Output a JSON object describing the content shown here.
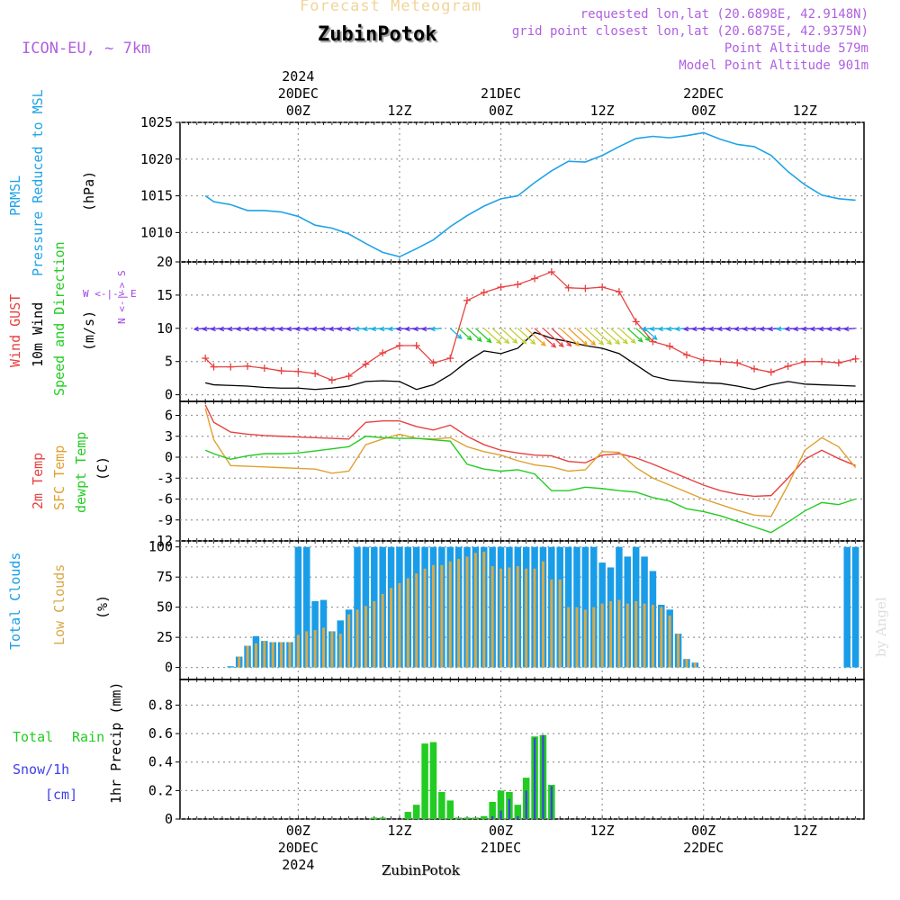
{
  "header": {
    "title": "Forecast Meteogram",
    "location": "ZubinPotok",
    "model": "ICON-EU, ~ 7km",
    "requested": "requested lon,lat (20.6898E, 42.9148N)",
    "closest": "grid point closest lon,lat (20.6875E, 42.9375N)",
    "point_alt": "Point Altitude 579m",
    "model_alt": "Model Point Altitude 901m",
    "footer_location": "ZubinPotok",
    "credit": "by Angel"
  },
  "colors": {
    "pressure": "#1fa3e8",
    "gust": "#e84040",
    "wind": "#000000",
    "temp": "#e84040",
    "sfc": "#e0a030",
    "dewpt": "#22cc22",
    "total_clouds": "#1a9de8",
    "low_clouds": "#d9a847",
    "rain": "#22cc22",
    "snow": "#4040e8",
    "dir_label": "#a040e0"
  },
  "time_axis": {
    "top_labels": [
      {
        "line1": "2024",
        "line2": "20DEC",
        "line3": "00Z",
        "hour": 24
      },
      {
        "line1": "",
        "line2": "",
        "line3": "12Z",
        "hour": 36
      },
      {
        "line1": "",
        "line2": "21DEC",
        "line3": "00Z",
        "hour": 48
      },
      {
        "line1": "",
        "line2": "",
        "line3": "12Z",
        "hour": 60
      },
      {
        "line1": "",
        "line2": "22DEC",
        "line3": "00Z",
        "hour": 72
      },
      {
        "line1": "",
        "line2": "",
        "line3": "12Z",
        "hour": 84
      }
    ],
    "bottom_labels": [
      {
        "line1": "00Z",
        "line2": "20DEC",
        "line3": "2024",
        "hour": 24
      },
      {
        "line1": "12Z",
        "line2": "",
        "line3": "",
        "hour": 36
      },
      {
        "line1": "00Z",
        "line2": "21DEC",
        "line3": "",
        "hour": 48
      },
      {
        "line1": "12Z",
        "line2": "",
        "line3": "",
        "hour": 60
      },
      {
        "line1": "00Z",
        "line2": "22DEC",
        "line3": "",
        "hour": 72
      },
      {
        "line1": "12Z",
        "line2": "",
        "line3": "",
        "hour": 84
      }
    ]
  },
  "panels": {
    "pressure": {
      "label1": "PRMSL",
      "label2": "Pressure Reduced to MSL",
      "unit": "(hPa)"
    },
    "wind": {
      "label_gust": "Wind GUST",
      "label_wind": "10m Wind",
      "label_dir": "Speed and Direction",
      "unit": "(m/s)",
      "compass_ns": "N <-|-> S",
      "compass_we": "W <-|-> E"
    },
    "temp": {
      "label_t2m": "2m Temp",
      "label_sfc": "SFC Temp",
      "label_dew": "dewpt Temp",
      "unit": "(C)"
    },
    "clouds": {
      "label_total": "Total Clouds",
      "label_low": "Low Clouds",
      "unit": "(%)"
    },
    "precip": {
      "label_total": "Total",
      "label_rain": "Rain",
      "label_snow": "Snow/1h",
      "label_cm": "[cm]",
      "unit": "1hr Precip (mm)"
    }
  },
  "chart_data": [
    {
      "type": "line",
      "title": "PRMSL Pressure Reduced to MSL",
      "ylabel": "(hPa)",
      "ylim": [
        1006,
        1025
      ],
      "yticks": [
        1010,
        1015,
        1020,
        1025
      ],
      "x": [
        13,
        14,
        16,
        18,
        20,
        22,
        24,
        26,
        28,
        30,
        32,
        34,
        36,
        38,
        40,
        42,
        44,
        46,
        48,
        50,
        52,
        54,
        56,
        58,
        60,
        62,
        64,
        66,
        68,
        70,
        72,
        74,
        76,
        78,
        80,
        82,
        84,
        86,
        88,
        90
      ],
      "series": [
        {
          "name": "PRMSL",
          "values": [
            1015,
            1014.2,
            1013.8,
            1013.0,
            1013.0,
            1012.8,
            1012.2,
            1011.0,
            1010.6,
            1009.8,
            1008.5,
            1007.3,
            1006.7,
            1007.8,
            1009.0,
            1010.8,
            1012.3,
            1013.6,
            1014.6,
            1015.0,
            1016.8,
            1018.4,
            1019.7,
            1019.6,
            1020.5,
            1021.7,
            1022.8,
            1023.1,
            1022.9,
            1023.2,
            1023.6,
            1022.7,
            1022.0,
            1021.7,
            1020.5,
            1018.3,
            1016.5,
            1015.1,
            1014.6,
            1014.4
          ]
        }
      ]
    },
    {
      "type": "line",
      "title": "Wind GUST / 10m Wind",
      "ylabel": "(m/s)",
      "ylim": [
        -1,
        20
      ],
      "yticks": [
        0,
        5,
        10,
        15,
        20
      ],
      "x": [
        13,
        14,
        16,
        18,
        20,
        22,
        24,
        26,
        28,
        30,
        32,
        34,
        36,
        38,
        40,
        42,
        44,
        46,
        48,
        50,
        52,
        54,
        56,
        58,
        60,
        62,
        64,
        66,
        68,
        70,
        72,
        74,
        76,
        78,
        80,
        82,
        84,
        86,
        88,
        90
      ],
      "series": [
        {
          "name": "Wind GUST",
          "values": [
            5.5,
            4.2,
            4.2,
            4.3,
            4.0,
            3.6,
            3.5,
            3.2,
            2.2,
            2.8,
            4.6,
            6.3,
            7.4,
            7.4,
            4.8,
            5.5,
            14.2,
            15.4,
            16.2,
            16.6,
            17.5,
            18.5,
            16.1,
            16.0,
            16.2,
            15.5,
            11.0,
            8.0,
            7.3,
            6.0,
            5.2,
            5.0,
            4.8,
            3.9,
            3.4,
            4.3,
            5.0,
            5.0,
            4.8,
            5.4
          ]
        },
        {
          "name": "10m Wind",
          "values": [
            1.8,
            1.5,
            1.4,
            1.3,
            1.1,
            1.0,
            1.0,
            0.8,
            1.0,
            1.3,
            2.0,
            2.1,
            2.0,
            0.8,
            1.5,
            3.0,
            5.0,
            6.6,
            6.2,
            7.0,
            9.4,
            8.5,
            8.0,
            7.4,
            7.0,
            6.2,
            4.5,
            2.8,
            2.2,
            2.0,
            1.8,
            1.7,
            1.3,
            0.8,
            1.5,
            2.0,
            1.6,
            1.5,
            1.4,
            1.3
          ]
        }
      ]
    },
    {
      "type": "line",
      "title": "2m / SFC / dewpt Temp",
      "ylabel": "(C)",
      "ylim": [
        -12,
        8
      ],
      "yticks": [
        -12,
        -9,
        -6,
        -3,
        0,
        3,
        6
      ],
      "x": [
        13,
        14,
        16,
        18,
        20,
        22,
        24,
        26,
        28,
        30,
        32,
        34,
        36,
        38,
        40,
        42,
        44,
        46,
        48,
        50,
        52,
        54,
        56,
        58,
        60,
        62,
        64,
        66,
        68,
        70,
        72,
        74,
        76,
        78,
        80,
        82,
        84,
        86,
        88,
        90
      ],
      "series": [
        {
          "name": "2m Temp",
          "values": [
            7.5,
            5.0,
            3.6,
            3.3,
            3.1,
            3.0,
            2.9,
            2.8,
            2.7,
            2.6,
            5.0,
            5.2,
            5.2,
            4.4,
            3.9,
            4.6,
            3.0,
            1.8,
            1.0,
            0.6,
            0.3,
            0.2,
            -0.6,
            -0.8,
            0.3,
            0.5,
            -0.1,
            -1.0,
            -2.0,
            -3.0,
            -4.0,
            -4.8,
            -5.3,
            -5.6,
            -5.5,
            -3.0,
            -0.3,
            1.0,
            -0.2,
            -1.2
          ]
        },
        {
          "name": "SFC Temp",
          "values": [
            7.0,
            2.5,
            -1.2,
            -1.3,
            -1.4,
            -1.5,
            -1.6,
            -1.7,
            -2.3,
            -2.0,
            1.8,
            2.6,
            3.3,
            2.7,
            2.6,
            2.8,
            1.5,
            0.8,
            0.3,
            -0.5,
            -1.1,
            -1.4,
            -2.0,
            -1.8,
            0.8,
            0.7,
            -1.5,
            -3.0,
            -4.0,
            -5.0,
            -6.0,
            -6.8,
            -7.6,
            -8.3,
            -8.5,
            -4.0,
            1.0,
            2.8,
            1.5,
            -1.5
          ]
        },
        {
          "name": "dewpt Temp",
          "values": [
            1.0,
            0.5,
            -0.3,
            0.2,
            0.5,
            0.5,
            0.6,
            0.9,
            1.2,
            1.5,
            3.0,
            2.8,
            2.7,
            2.7,
            2.5,
            2.3,
            -1.0,
            -1.7,
            -2.0,
            -1.8,
            -2.4,
            -4.8,
            -4.8,
            -4.3,
            -4.5,
            -4.8,
            -5.0,
            -5.8,
            -6.3,
            -7.4,
            -7.8,
            -8.4,
            -9.2,
            -10.0,
            -10.8,
            -9.3,
            -7.7,
            -6.5,
            -6.8,
            -6.0
          ]
        }
      ]
    },
    {
      "type": "bar",
      "title": "Total Clouds / Low Clouds",
      "ylabel": "(%)",
      "ylim": [
        -10,
        105
      ],
      "yticks": [
        0,
        25,
        50,
        75,
        100
      ],
      "x": [
        16,
        17,
        18,
        19,
        20,
        21,
        22,
        23,
        24,
        25,
        26,
        27,
        28,
        29,
        30,
        31,
        32,
        33,
        34,
        35,
        36,
        37,
        38,
        39,
        40,
        41,
        42,
        43,
        44,
        45,
        46,
        47,
        48,
        49,
        50,
        51,
        52,
        53,
        54,
        55,
        56,
        57,
        58,
        59,
        60,
        61,
        62,
        63,
        64,
        65,
        66,
        67,
        68,
        69,
        70,
        71,
        72,
        89,
        90
      ],
      "series": [
        {
          "name": "Total Clouds",
          "values": [
            1,
            9,
            18,
            26,
            22,
            21,
            21,
            21,
            100,
            100,
            55,
            56,
            30,
            39,
            48,
            100,
            100,
            100,
            100,
            100,
            100,
            100,
            100,
            100,
            100,
            100,
            100,
            100,
            100,
            100,
            100,
            100,
            100,
            100,
            100,
            100,
            100,
            100,
            100,
            100,
            100,
            100,
            100,
            100,
            87,
            83,
            100,
            92,
            100,
            92,
            80,
            52,
            48,
            28,
            7,
            4,
            0,
            100,
            100
          ]
        },
        {
          "name": "Low Clouds",
          "values": [
            0,
            9,
            18,
            20,
            22,
            21,
            21,
            21,
            27,
            30,
            31,
            33,
            30,
            28,
            44,
            48,
            51,
            55,
            61,
            66,
            70,
            74,
            78,
            82,
            85,
            85,
            88,
            90,
            92,
            95,
            96,
            84,
            82,
            83,
            84,
            82,
            82,
            88,
            73,
            73,
            50,
            50,
            48,
            50,
            53,
            55,
            56,
            53,
            55,
            53,
            52,
            50,
            43,
            28,
            7,
            4,
            0,
            0,
            0
          ]
        }
      ]
    },
    {
      "type": "bar",
      "title": "Total Rain / Snow 1hr Precip",
      "ylabel": "1hr Precip (mm)",
      "ylim": [
        0,
        0.98
      ],
      "yticks": [
        0,
        0.2,
        0.4,
        0.6,
        0.8
      ],
      "x": [
        33,
        34,
        37,
        38,
        39,
        40,
        41,
        42,
        43,
        44,
        45,
        46,
        47,
        48,
        49,
        50,
        51,
        52,
        53,
        54,
        55
      ],
      "series": [
        {
          "name": "Total Rain",
          "values": [
            0.01,
            0.01,
            0.05,
            0.1,
            0.53,
            0.54,
            0.19,
            0.13,
            0.01,
            0.01,
            0.01,
            0.02,
            0.12,
            0.2,
            0.19,
            0.1,
            0.29,
            0.58,
            0.59,
            0.24,
            0.0
          ]
        },
        {
          "name": "Snow/1h",
          "values": [
            0,
            0,
            0,
            0,
            0,
            0,
            0,
            0,
            0,
            0,
            0,
            0,
            0.02,
            0.06,
            0.14,
            0.02,
            0.2,
            0.57,
            0.59,
            0.23,
            0.0
          ]
        }
      ]
    }
  ]
}
